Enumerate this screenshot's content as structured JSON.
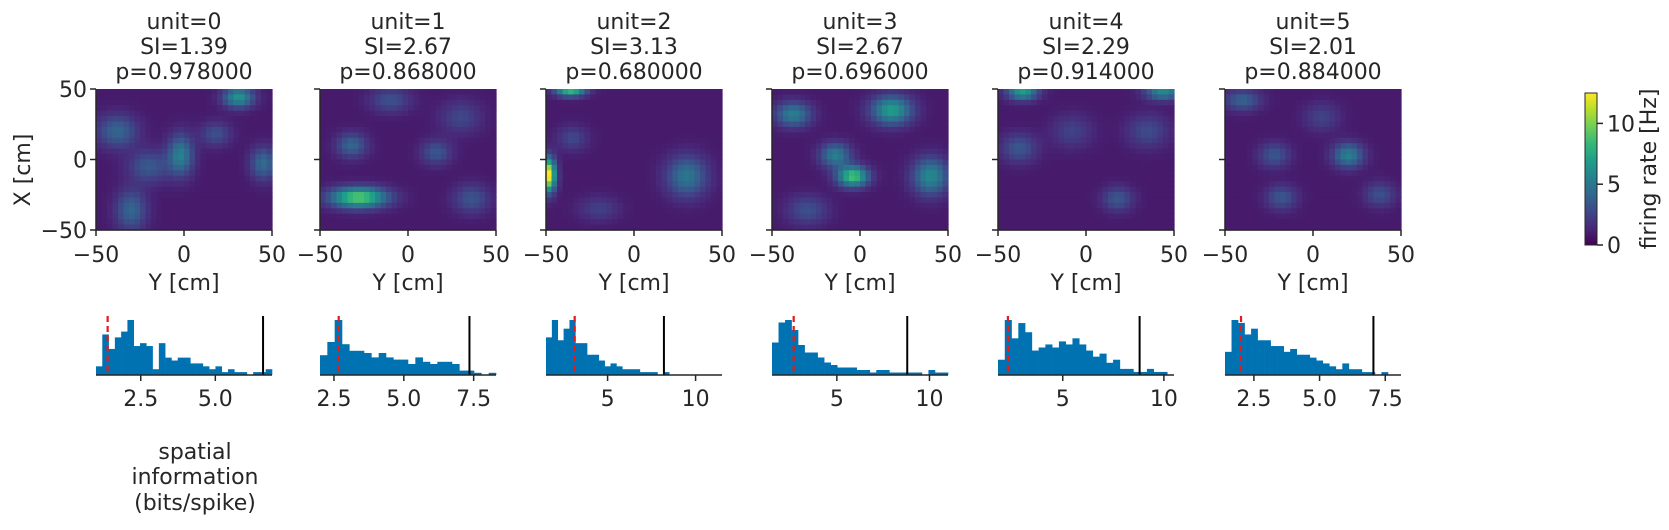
{
  "figure": {
    "y_axis_label": "X [cm]",
    "x_axis_label": "Y [cm]",
    "hist_xlabel_lines": [
      "spatial",
      "information",
      "(bits/spike)"
    ]
  },
  "colorbar": {
    "label": "firing rate [Hz]",
    "ticks": [
      0,
      5,
      10
    ],
    "range": [
      0,
      12.5
    ],
    "colormap": "viridis",
    "colormap_stops": [
      "#440154",
      "#482878",
      "#3e4989",
      "#31688e",
      "#26828e",
      "#1f9e89",
      "#35b779",
      "#6ece58",
      "#b5de2b",
      "#fde725"
    ]
  },
  "colors": {
    "hist_bar": "#0072b2",
    "observed_line": "#000000",
    "null_mean_line": "#e41a1c"
  },
  "chart_data": [
    {
      "type": "heatmap",
      "title_lines": [
        "unit=0",
        "SI=1.39",
        "p=0.978000"
      ],
      "xlim": [
        -50,
        50
      ],
      "ylim": [
        -50,
        50
      ],
      "xticks": [
        -50,
        0,
        50
      ],
      "yticks": [
        -50,
        0,
        50
      ],
      "fields": [
        {
          "x": 31,
          "y": 44,
          "sx": 6,
          "sy": 5,
          "a": 5.5
        },
        {
          "x": -2,
          "y": 3,
          "sx": 5,
          "sy": 10,
          "a": 4.5
        },
        {
          "x": -38,
          "y": 20,
          "sx": 8,
          "sy": 8,
          "a": 3.2
        },
        {
          "x": 45,
          "y": -3,
          "sx": 5,
          "sy": 8,
          "a": 3.5
        },
        {
          "x": -30,
          "y": -36,
          "sx": 6,
          "sy": 10,
          "a": 3.2
        },
        {
          "x": -20,
          "y": -5,
          "sx": 8,
          "sy": 8,
          "a": 2.6
        },
        {
          "x": 18,
          "y": 18,
          "sx": 6,
          "sy": 6,
          "a": 2.2
        }
      ],
      "hist": {
        "range": [
          1.0,
          6.9
        ],
        "xticks": [
          2.5,
          5.0
        ],
        "tick_labels": [
          "2.5",
          "5.0"
        ],
        "counts": [
          3,
          14,
          9,
          13,
          15,
          19,
          10,
          11,
          10,
          2,
          11,
          6,
          5,
          6,
          6,
          4,
          4,
          3,
          2,
          3,
          1,
          2,
          1,
          1,
          0,
          1,
          1,
          2
        ],
        "observed_si": 6.6,
        "null_mean": 1.39
      }
    },
    {
      "type": "heatmap",
      "title_lines": [
        "unit=1",
        "SI=2.67",
        "p=0.868000"
      ],
      "xlim": [
        -50,
        50
      ],
      "ylim": [
        -50,
        50
      ],
      "xticks": [
        -50,
        0,
        50
      ],
      "yticks": [
        -50,
        0,
        50
      ],
      "fields": [
        {
          "x": -28,
          "y": -27,
          "sx": 11,
          "sy": 5,
          "a": 8.5
        },
        {
          "x": -32,
          "y": 10,
          "sx": 6,
          "sy": 6,
          "a": 3.2
        },
        {
          "x": 16,
          "y": 5,
          "sx": 6,
          "sy": 6,
          "a": 2.5
        },
        {
          "x": -10,
          "y": 42,
          "sx": 8,
          "sy": 6,
          "a": 2.2
        },
        {
          "x": 36,
          "y": -28,
          "sx": 7,
          "sy": 7,
          "a": 2.4
        },
        {
          "x": 30,
          "y": 30,
          "sx": 8,
          "sy": 8,
          "a": 1.8
        }
      ],
      "hist": {
        "range": [
          2.0,
          8.3
        ],
        "xticks": [
          2.5,
          5.0,
          7.5
        ],
        "tick_labels": [
          "2.5",
          "5.0",
          "7.5"
        ],
        "counts": [
          9,
          15,
          25,
          14,
          11,
          11,
          10,
          8,
          10,
          8,
          7,
          7,
          5,
          8,
          6,
          5,
          6,
          6,
          5,
          2,
          2,
          1,
          0,
          1
        ],
        "observed_si": 7.35,
        "null_mean": 2.67
      }
    },
    {
      "type": "heatmap",
      "title_lines": [
        "unit=2",
        "SI=3.13",
        "p=0.680000"
      ],
      "xlim": [
        -50,
        50
      ],
      "ylim": [
        -50,
        50
      ],
      "xticks": [
        -50,
        0,
        50
      ],
      "yticks": [
        -50,
        0,
        50
      ],
      "fields": [
        {
          "x": -49,
          "y": -11,
          "sx": 3,
          "sy": 8,
          "a": 12
        },
        {
          "x": -36,
          "y": 49,
          "sx": 6,
          "sy": 3,
          "a": 7.5
        },
        {
          "x": 30,
          "y": -12,
          "sx": 8,
          "sy": 10,
          "a": 4
        },
        {
          "x": -35,
          "y": 15,
          "sx": 6,
          "sy": 6,
          "a": 1.8
        },
        {
          "x": -20,
          "y": -35,
          "sx": 8,
          "sy": 6,
          "a": 1.5
        }
      ],
      "hist": {
        "range": [
          1.5,
          11.5
        ],
        "xticks": [
          5,
          10
        ],
        "tick_labels": [
          "5",
          "10"
        ],
        "counts": [
          13,
          19,
          12,
          16,
          19,
          11,
          11,
          7,
          7,
          5,
          3,
          4,
          3,
          2,
          2,
          2,
          1,
          1,
          1,
          0,
          1,
          0,
          0,
          0,
          0,
          0,
          0,
          0,
          0,
          0
        ],
        "observed_si": 8.2,
        "null_mean": 3.13
      }
    },
    {
      "type": "heatmap",
      "title_lines": [
        "unit=3",
        "SI=2.67",
        "p=0.696000"
      ],
      "xlim": [
        -50,
        50
      ],
      "ylim": [
        -50,
        50
      ],
      "xticks": [
        -50,
        0,
        50
      ],
      "yticks": [
        -50,
        0,
        50
      ],
      "fields": [
        {
          "x": -4,
          "y": -12,
          "sx": 6,
          "sy": 5,
          "a": 8
        },
        {
          "x": -14,
          "y": 3,
          "sx": 6,
          "sy": 6,
          "a": 4.5
        },
        {
          "x": 18,
          "y": 35,
          "sx": 8,
          "sy": 7,
          "a": 6
        },
        {
          "x": -38,
          "y": 32,
          "sx": 7,
          "sy": 6,
          "a": 4.5
        },
        {
          "x": 40,
          "y": -12,
          "sx": 7,
          "sy": 9,
          "a": 5
        },
        {
          "x": -30,
          "y": -36,
          "sx": 8,
          "sy": 7,
          "a": 2.2
        }
      ],
      "hist": {
        "range": [
          1.5,
          11.0
        ],
        "xticks": [
          5,
          10
        ],
        "tick_labels": [
          "5",
          "10"
        ],
        "counts": [
          13,
          21,
          22,
          18,
          12,
          9,
          9,
          7,
          5,
          4,
          3,
          3,
          3,
          2,
          2,
          1,
          2,
          2,
          1,
          1,
          1,
          1,
          1,
          0,
          2,
          1,
          1
        ],
        "observed_si": 8.8,
        "null_mean": 2.67
      }
    },
    {
      "type": "heatmap",
      "title_lines": [
        "unit=4",
        "SI=2.29",
        "p=0.914000"
      ],
      "xlim": [
        -50,
        50
      ],
      "ylim": [
        -50,
        50
      ],
      "xticks": [
        -50,
        0,
        50
      ],
      "yticks": [
        -50,
        0,
        50
      ],
      "fields": [
        {
          "x": -36,
          "y": 48,
          "sx": 6,
          "sy": 4,
          "a": 6
        },
        {
          "x": 44,
          "y": 48,
          "sx": 7,
          "sy": 4,
          "a": 5
        },
        {
          "x": -38,
          "y": 8,
          "sx": 7,
          "sy": 7,
          "a": 2.5
        },
        {
          "x": 18,
          "y": -28,
          "sx": 6,
          "sy": 6,
          "a": 2.5
        },
        {
          "x": 35,
          "y": 20,
          "sx": 8,
          "sy": 8,
          "a": 2.0
        },
        {
          "x": -8,
          "y": 20,
          "sx": 8,
          "sy": 8,
          "a": 1.6
        }
      ],
      "hist": {
        "range": [
          1.8,
          10.5
        ],
        "xticks": [
          5,
          10
        ],
        "tick_labels": [
          "5",
          "10"
        ],
        "counts": [
          5,
          18,
          12,
          17,
          14,
          8,
          9,
          10,
          9,
          11,
          10,
          12,
          10,
          8,
          6,
          7,
          4,
          5,
          2,
          2,
          1,
          1,
          2,
          1,
          1,
          0
        ],
        "observed_si": 8.8,
        "null_mean": 2.29
      }
    },
    {
      "type": "heatmap",
      "title_lines": [
        "unit=5",
        "SI=2.01",
        "p=0.884000"
      ],
      "xlim": [
        -50,
        50
      ],
      "ylim": [
        -50,
        50
      ],
      "xticks": [
        -50,
        0,
        50
      ],
      "yticks": [
        -50,
        0,
        50
      ],
      "fields": [
        {
          "x": 20,
          "y": 3,
          "sx": 6,
          "sy": 6,
          "a": 4.5
        },
        {
          "x": -40,
          "y": 42,
          "sx": 7,
          "sy": 5,
          "a": 3
        },
        {
          "x": -22,
          "y": 3,
          "sx": 6,
          "sy": 6,
          "a": 2.5
        },
        {
          "x": -18,
          "y": -27,
          "sx": 6,
          "sy": 6,
          "a": 2.5
        },
        {
          "x": 38,
          "y": -25,
          "sx": 6,
          "sy": 6,
          "a": 2.2
        },
        {
          "x": 5,
          "y": 30,
          "sx": 7,
          "sy": 7,
          "a": 1.6
        }
      ],
      "hist": {
        "range": [
          1.4,
          8.1
        ],
        "xticks": [
          2.5,
          5.0,
          7.5
        ],
        "tick_labels": [
          "2.5",
          "5.0",
          "7.5"
        ],
        "counts": [
          8,
          19,
          18,
          14,
          16,
          12,
          12,
          10,
          10,
          8,
          9,
          7,
          7,
          6,
          5,
          4,
          3,
          2,
          4,
          2,
          2,
          1,
          1,
          0,
          1,
          0,
          0
        ],
        "observed_si": 7.05,
        "null_mean": 2.01
      }
    }
  ]
}
